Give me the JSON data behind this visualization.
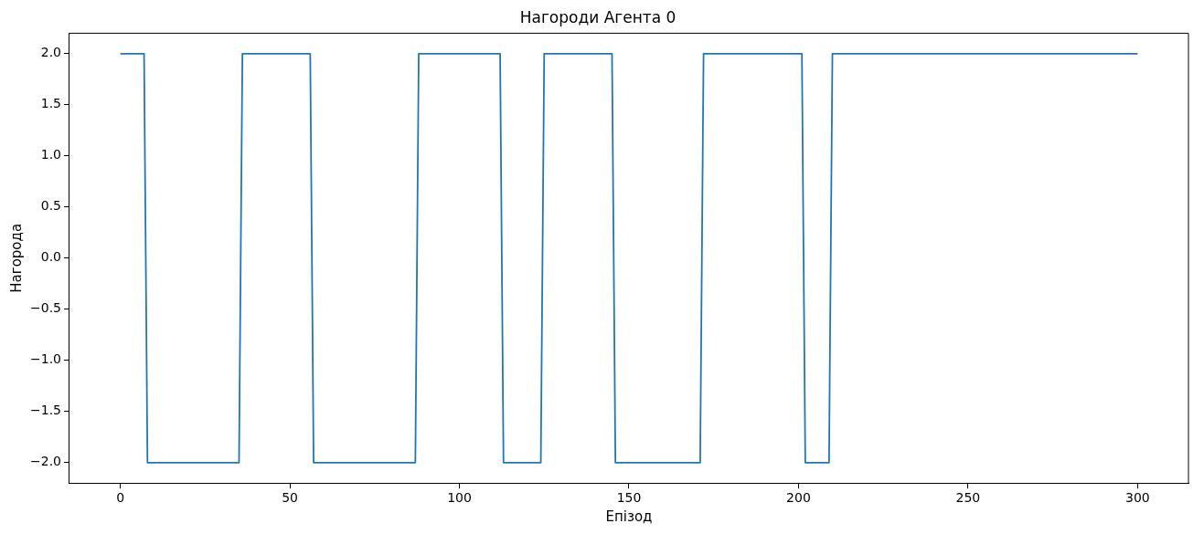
{
  "chart_data": {
    "type": "line",
    "title": "Нагороди Агента 0",
    "xlabel": "Епізод",
    "ylabel": "Нагорода",
    "x": [
      0,
      7,
      8,
      35,
      36,
      56,
      57,
      87,
      88,
      112,
      113,
      124,
      125,
      145,
      146,
      171,
      172,
      201,
      202,
      209,
      210,
      300
    ],
    "series": [
      {
        "color": "#1f77b4",
        "values": [
          2,
          2,
          -2,
          -2,
          2,
          2,
          -2,
          -2,
          2,
          2,
          -2,
          -2,
          2,
          2,
          -2,
          -2,
          2,
          2,
          -2,
          -2,
          2,
          2
        ]
      }
    ],
    "xlim": [
      -15,
      315
    ],
    "xticks": [
      0,
      50,
      100,
      150,
      200,
      250,
      300
    ],
    "ylim": [
      -2.2,
      2.2
    ],
    "yticks": [
      {
        "value": -2,
        "label": "−2.0"
      },
      {
        "value": -1.5,
        "label": "−1.5"
      },
      {
        "value": -1,
        "label": "−1.0"
      },
      {
        "value": -0.5,
        "label": "−0.5"
      },
      {
        "value": 0,
        "label": "0.0"
      },
      {
        "value": 0.5,
        "label": "0.5"
      },
      {
        "value": 1,
        "label": "1.0"
      },
      {
        "value": 1.5,
        "label": "1.5"
      },
      {
        "value": 2,
        "label": "2.0"
      }
    ],
    "grid": false,
    "legend": false,
    "marker": "none",
    "line_style": "solid"
  }
}
